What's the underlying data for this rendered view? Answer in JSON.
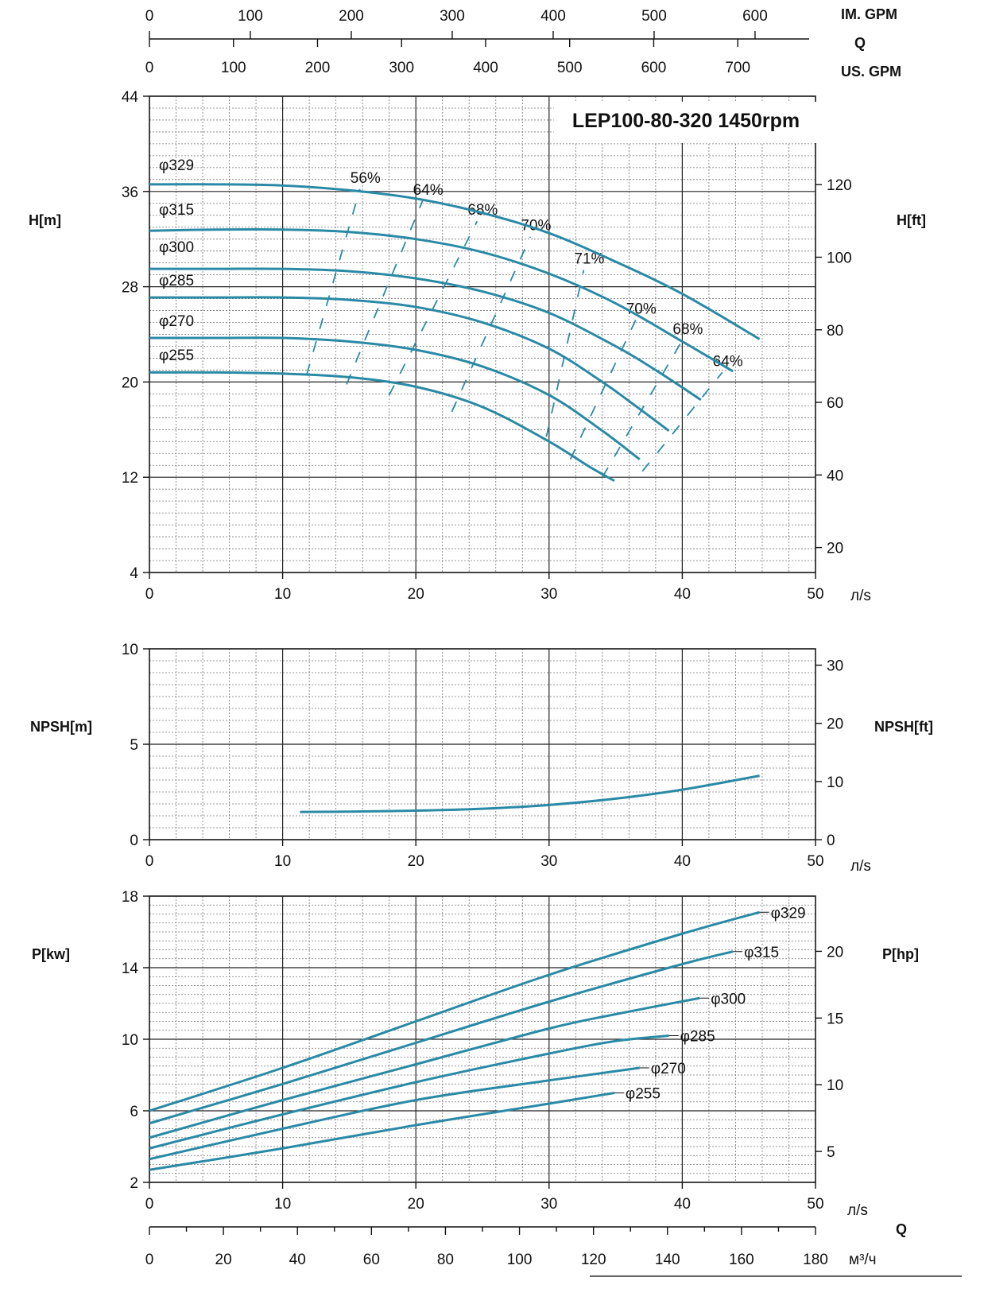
{
  "colors": {
    "curve": "#2a8aa6",
    "grid_major": "#222222",
    "grid_minor": "#777777"
  },
  "top_axes": {
    "im_gpm": {
      "ticks": [
        0,
        100,
        200,
        300,
        400,
        500,
        600
      ],
      "label": "IM. GPM"
    },
    "q_label": "Q",
    "us_gpm": {
      "ticks": [
        0,
        100,
        200,
        300,
        400,
        500,
        600,
        700
      ],
      "label": "US. GPM"
    }
  },
  "bottom_axis": {
    "ticks": [
      0,
      20,
      40,
      60,
      80,
      100,
      120,
      140,
      160,
      180
    ],
    "unit": "м³/ч",
    "q_label": "Q"
  },
  "chart_data": [
    {
      "type": "line",
      "title": "LEP100-80-320 1450rpm",
      "xlabel": "л/s",
      "ylabel": "H[m]",
      "ylabel_right": "H[ft]",
      "xlim": [
        0,
        50
      ],
      "ylim": [
        4,
        44
      ],
      "x_ticks": [
        0,
        10,
        20,
        30,
        40,
        50
      ],
      "y_ticks": [
        4,
        12,
        20,
        28,
        36,
        44
      ],
      "y_right_ticks": [
        20,
        40,
        60,
        80,
        100,
        120
      ],
      "grid": true,
      "series": [
        {
          "name": "φ329",
          "x": [
            0,
            5,
            10,
            15,
            20,
            25,
            30,
            35,
            40,
            45.8
          ],
          "y": [
            36.6,
            36.6,
            36.5,
            36.1,
            35.4,
            34.2,
            32.5,
            30.1,
            27.4,
            23.6
          ]
        },
        {
          "name": "φ315",
          "x": [
            0,
            5,
            10,
            15,
            20,
            25,
            30,
            35,
            40,
            43.8
          ],
          "y": [
            32.7,
            32.8,
            32.8,
            32.6,
            32.0,
            30.9,
            29.1,
            26.6,
            23.4,
            20.9
          ]
        },
        {
          "name": "φ300",
          "x": [
            0,
            5,
            10,
            15,
            20,
            25,
            30,
            35,
            38,
            41.4
          ],
          "y": [
            29.5,
            29.5,
            29.5,
            29.3,
            28.7,
            27.6,
            25.8,
            23.0,
            21.0,
            18.5
          ]
        },
        {
          "name": "φ285",
          "x": [
            0,
            5,
            10,
            15,
            20,
            25,
            30,
            34,
            36,
            39
          ],
          "y": [
            27.1,
            27.1,
            27.1,
            26.9,
            26.3,
            25.0,
            22.8,
            20.0,
            18.4,
            15.9
          ]
        },
        {
          "name": "φ270",
          "x": [
            0,
            5,
            10,
            15,
            20,
            25,
            30,
            34,
            36.8
          ],
          "y": [
            23.7,
            23.7,
            23.7,
            23.4,
            22.7,
            21.3,
            18.9,
            15.9,
            13.5
          ]
        },
        {
          "name": "φ255",
          "x": [
            0,
            5,
            10,
            15,
            20,
            25,
            30,
            33,
            34.9
          ],
          "y": [
            20.8,
            20.8,
            20.7,
            20.4,
            19.6,
            17.9,
            15.0,
            12.9,
            11.7
          ]
        }
      ],
      "efficiency_lines": [
        {
          "label": "56%",
          "x": [
            11.8,
            15.8
          ],
          "y": [
            20.6,
            36.2
          ]
        },
        {
          "label": "64%",
          "x": [
            14.8,
            20.5
          ],
          "y": [
            19.8,
            35.2
          ]
        },
        {
          "label": "68%",
          "x": [
            18.0,
            24.6
          ],
          "y": [
            18.9,
            33.5
          ]
        },
        {
          "label": "70%",
          "x": [
            22.7,
            28.6
          ],
          "y": [
            17.5,
            32.2
          ]
        },
        {
          "label": "71%",
          "x": [
            29.8,
            32.6
          ],
          "y": [
            15.4,
            29.4
          ]
        },
        {
          "label": "70%",
          "x": [
            31.6,
            36.5
          ],
          "y": [
            13.5,
            25.2
          ]
        },
        {
          "label": "68%",
          "x": [
            34.0,
            40.0
          ],
          "y": [
            12.0,
            23.5
          ]
        },
        {
          "label": "64%",
          "x": [
            37.0,
            43.0
          ],
          "y": [
            12.5,
            20.8
          ]
        }
      ]
    },
    {
      "type": "line",
      "xlabel": "л/s",
      "ylabel": "NPSH[m]",
      "ylabel_right": "NPSH[ft]",
      "xlim": [
        0,
        50
      ],
      "ylim": [
        0,
        10
      ],
      "x_ticks": [
        0,
        10,
        20,
        30,
        40,
        50
      ],
      "y_ticks": [
        0,
        5,
        10
      ],
      "y_right_ticks": [
        0,
        10,
        20,
        30
      ],
      "grid": true,
      "series": [
        {
          "x": [
            11.3,
            15,
            20,
            25,
            30,
            35,
            40,
            45.8
          ],
          "y": [
            1.45,
            1.47,
            1.52,
            1.62,
            1.82,
            2.15,
            2.62,
            3.35
          ]
        }
      ]
    },
    {
      "type": "line",
      "xlabel": "л/s",
      "ylabel": "P[kw]",
      "ylabel_right": "P[hp]",
      "xlim": [
        0,
        50
      ],
      "ylim": [
        2,
        18
      ],
      "x_ticks": [
        0,
        10,
        20,
        30,
        40,
        50
      ],
      "y_ticks": [
        2,
        6,
        10,
        14,
        18
      ],
      "y_right_ticks": [
        5,
        10,
        15,
        20
      ],
      "grid": true,
      "series": [
        {
          "name": "φ329",
          "x": [
            0,
            10,
            20,
            30,
            40,
            45.8
          ],
          "y": [
            6.0,
            8.4,
            11.0,
            13.6,
            15.9,
            17.1
          ]
        },
        {
          "name": "φ315",
          "x": [
            0,
            10,
            20,
            30,
            40,
            43.8
          ],
          "y": [
            5.3,
            7.5,
            9.8,
            12.1,
            14.2,
            14.9
          ]
        },
        {
          "name": "φ300",
          "x": [
            0,
            10,
            20,
            30,
            35,
            41.3
          ],
          "y": [
            4.5,
            6.6,
            8.6,
            10.6,
            11.4,
            12.3
          ]
        },
        {
          "name": "φ285",
          "x": [
            0,
            10,
            20,
            30,
            35,
            39
          ],
          "y": [
            3.9,
            5.8,
            7.6,
            9.2,
            9.9,
            10.2
          ]
        },
        {
          "name": "φ270",
          "x": [
            0,
            10,
            20,
            30,
            36.8
          ],
          "y": [
            3.3,
            5.0,
            6.6,
            7.7,
            8.4
          ]
        },
        {
          "name": "φ255",
          "x": [
            0,
            10,
            20,
            30,
            34.9
          ],
          "y": [
            2.7,
            3.9,
            5.2,
            6.4,
            7.0
          ]
        }
      ]
    }
  ]
}
